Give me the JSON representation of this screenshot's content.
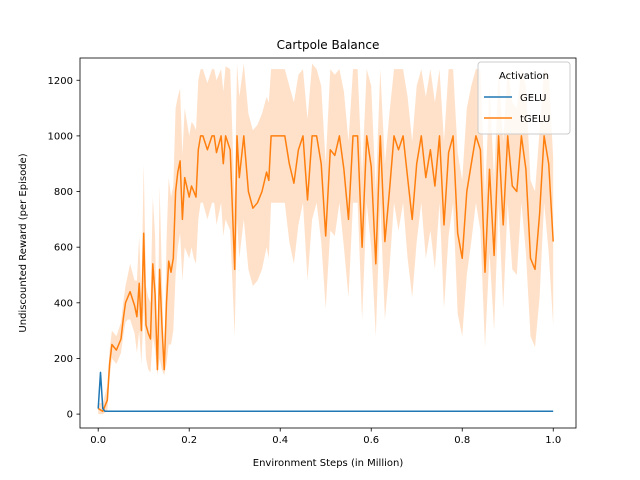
{
  "chart_data": {
    "type": "line",
    "title": "Cartpole Balance",
    "xlabel": "Environment Steps (in Million)",
    "ylabel": "Undiscounted Reward (per Episode)",
    "xlim": [
      -0.04,
      1.05
    ],
    "ylim": [
      -50,
      1280
    ],
    "x_ticks": [
      0.0,
      0.2,
      0.4,
      0.6,
      0.8,
      1.0
    ],
    "x_tick_labels": [
      "0.0",
      "0.2",
      "0.4",
      "0.6",
      "0.8",
      "1.0"
    ],
    "y_ticks": [
      0,
      200,
      400,
      600,
      800,
      1000,
      1200
    ],
    "y_tick_labels": [
      "0",
      "200",
      "400",
      "600",
      "800",
      "1000",
      "1200"
    ],
    "legend": {
      "title": "Activation",
      "placement": "top-right"
    },
    "series": [
      {
        "name": "GELU",
        "color": "#1f77b4",
        "x": [
          0.0,
          0.005,
          0.01,
          0.015,
          0.02,
          0.1,
          0.3,
          0.5,
          0.7,
          0.9,
          1.0
        ],
        "values": [
          20,
          150,
          20,
          10,
          10,
          10,
          10,
          10,
          10,
          10,
          10
        ]
      },
      {
        "name": "tGELU",
        "color": "#ff7f0e",
        "band_color": "#ffdcc0",
        "x": [
          0.0,
          0.01,
          0.02,
          0.025,
          0.03,
          0.04,
          0.05,
          0.055,
          0.06,
          0.065,
          0.07,
          0.08,
          0.085,
          0.09,
          0.095,
          0.1,
          0.105,
          0.11,
          0.115,
          0.12,
          0.125,
          0.13,
          0.135,
          0.14,
          0.145,
          0.15,
          0.155,
          0.16,
          0.165,
          0.17,
          0.175,
          0.18,
          0.185,
          0.19,
          0.2,
          0.205,
          0.21,
          0.215,
          0.22,
          0.225,
          0.23,
          0.24,
          0.25,
          0.255,
          0.26,
          0.27,
          0.275,
          0.28,
          0.29,
          0.3,
          0.305,
          0.31,
          0.32,
          0.33,
          0.34,
          0.35,
          0.36,
          0.37,
          0.375,
          0.38,
          0.39,
          0.4,
          0.41,
          0.42,
          0.43,
          0.44,
          0.45,
          0.46,
          0.47,
          0.48,
          0.49,
          0.5,
          0.51,
          0.52,
          0.53,
          0.54,
          0.55,
          0.56,
          0.57,
          0.58,
          0.59,
          0.6,
          0.61,
          0.62,
          0.63,
          0.64,
          0.65,
          0.66,
          0.67,
          0.68,
          0.69,
          0.7,
          0.71,
          0.72,
          0.73,
          0.74,
          0.75,
          0.76,
          0.77,
          0.78,
          0.79,
          0.8,
          0.81,
          0.82,
          0.83,
          0.84,
          0.85,
          0.86,
          0.87,
          0.88,
          0.89,
          0.9,
          0.91,
          0.92,
          0.93,
          0.94,
          0.95,
          0.96,
          0.97,
          0.98,
          0.99,
          1.0
        ],
        "values": [
          20,
          10,
          50,
          180,
          250,
          230,
          270,
          340,
          400,
          420,
          440,
          390,
          350,
          470,
          300,
          650,
          320,
          290,
          270,
          540,
          430,
          160,
          520,
          320,
          160,
          400,
          550,
          510,
          560,
          800,
          870,
          910,
          700,
          850,
          780,
          820,
          800,
          780,
          950,
          1000,
          1000,
          950,
          1000,
          1000,
          940,
          1000,
          900,
          1000,
          950,
          520,
          1000,
          850,
          1000,
          800,
          740,
          760,
          800,
          870,
          840,
          1000,
          1000,
          1000,
          1000,
          900,
          830,
          950,
          1000,
          770,
          1000,
          1000,
          900,
          640,
          950,
          930,
          1000,
          880,
          700,
          1000,
          1000,
          600,
          1000,
          890,
          540,
          1000,
          620,
          800,
          1000,
          950,
          1000,
          850,
          700,
          900,
          1000,
          850,
          950,
          820,
          1000,
          680,
          940,
          1000,
          650,
          560,
          800,
          900,
          1000,
          950,
          510,
          880,
          570,
          1000,
          680,
          1000,
          820,
          800,
          1000,
          880,
          560,
          520,
          720,
          1000,
          900,
          620
        ],
        "lower": [
          0,
          0,
          10,
          130,
          200,
          180,
          220,
          280,
          330,
          340,
          340,
          290,
          220,
          300,
          180,
          380,
          200,
          160,
          150,
          280,
          230,
          140,
          200,
          160,
          140,
          180,
          250,
          250,
          300,
          500,
          600,
          650,
          480,
          600,
          560,
          600,
          560,
          540,
          700,
          760,
          760,
          700,
          760,
          760,
          680,
          760,
          640,
          700,
          660,
          280,
          700,
          560,
          700,
          520,
          460,
          480,
          520,
          600,
          560,
          760,
          760,
          760,
          760,
          620,
          540,
          680,
          760,
          480,
          700,
          760,
          620,
          380,
          660,
          640,
          760,
          600,
          420,
          760,
          760,
          340,
          760,
          600,
          280,
          760,
          340,
          520,
          760,
          660,
          760,
          560,
          420,
          620,
          760,
          560,
          660,
          520,
          760,
          380,
          640,
          760,
          360,
          280,
          500,
          620,
          760,
          660,
          240,
          580,
          300,
          760,
          380,
          760,
          520,
          500,
          760,
          580,
          280,
          240,
          420,
          760,
          580,
          320
        ],
        "upper": [
          40,
          40,
          100,
          230,
          300,
          280,
          330,
          400,
          460,
          500,
          540,
          480,
          480,
          640,
          420,
          900,
          460,
          420,
          400,
          780,
          640,
          180,
          820,
          500,
          180,
          620,
          850,
          780,
          820,
          1100,
          1140,
          1170,
          930,
          1100,
          1000,
          1050,
          1040,
          1020,
          1200,
          1240,
          1240,
          1190,
          1240,
          1240,
          1200,
          1240,
          1160,
          1250,
          1240,
          760,
          1260,
          1140,
          1260,
          1080,
          1020,
          1040,
          1080,
          1140,
          1120,
          1240,
          1240,
          1240,
          1240,
          1180,
          1120,
          1220,
          1240,
          1060,
          1260,
          1240,
          1180,
          900,
          1240,
          1220,
          1240,
          1160,
          980,
          1240,
          1240,
          860,
          1240,
          1180,
          800,
          1240,
          900,
          1080,
          1240,
          1240,
          1240,
          1140,
          980,
          1180,
          1240,
          1140,
          1240,
          1120,
          1240,
          980,
          1240,
          1240,
          940,
          840,
          1100,
          1180,
          1240,
          1240,
          780,
          1180,
          840,
          1240,
          980,
          1240,
          1120,
          1100,
          1240,
          1180,
          840,
          800,
          1020,
          1240,
          1220,
          920
        ]
      }
    ]
  }
}
